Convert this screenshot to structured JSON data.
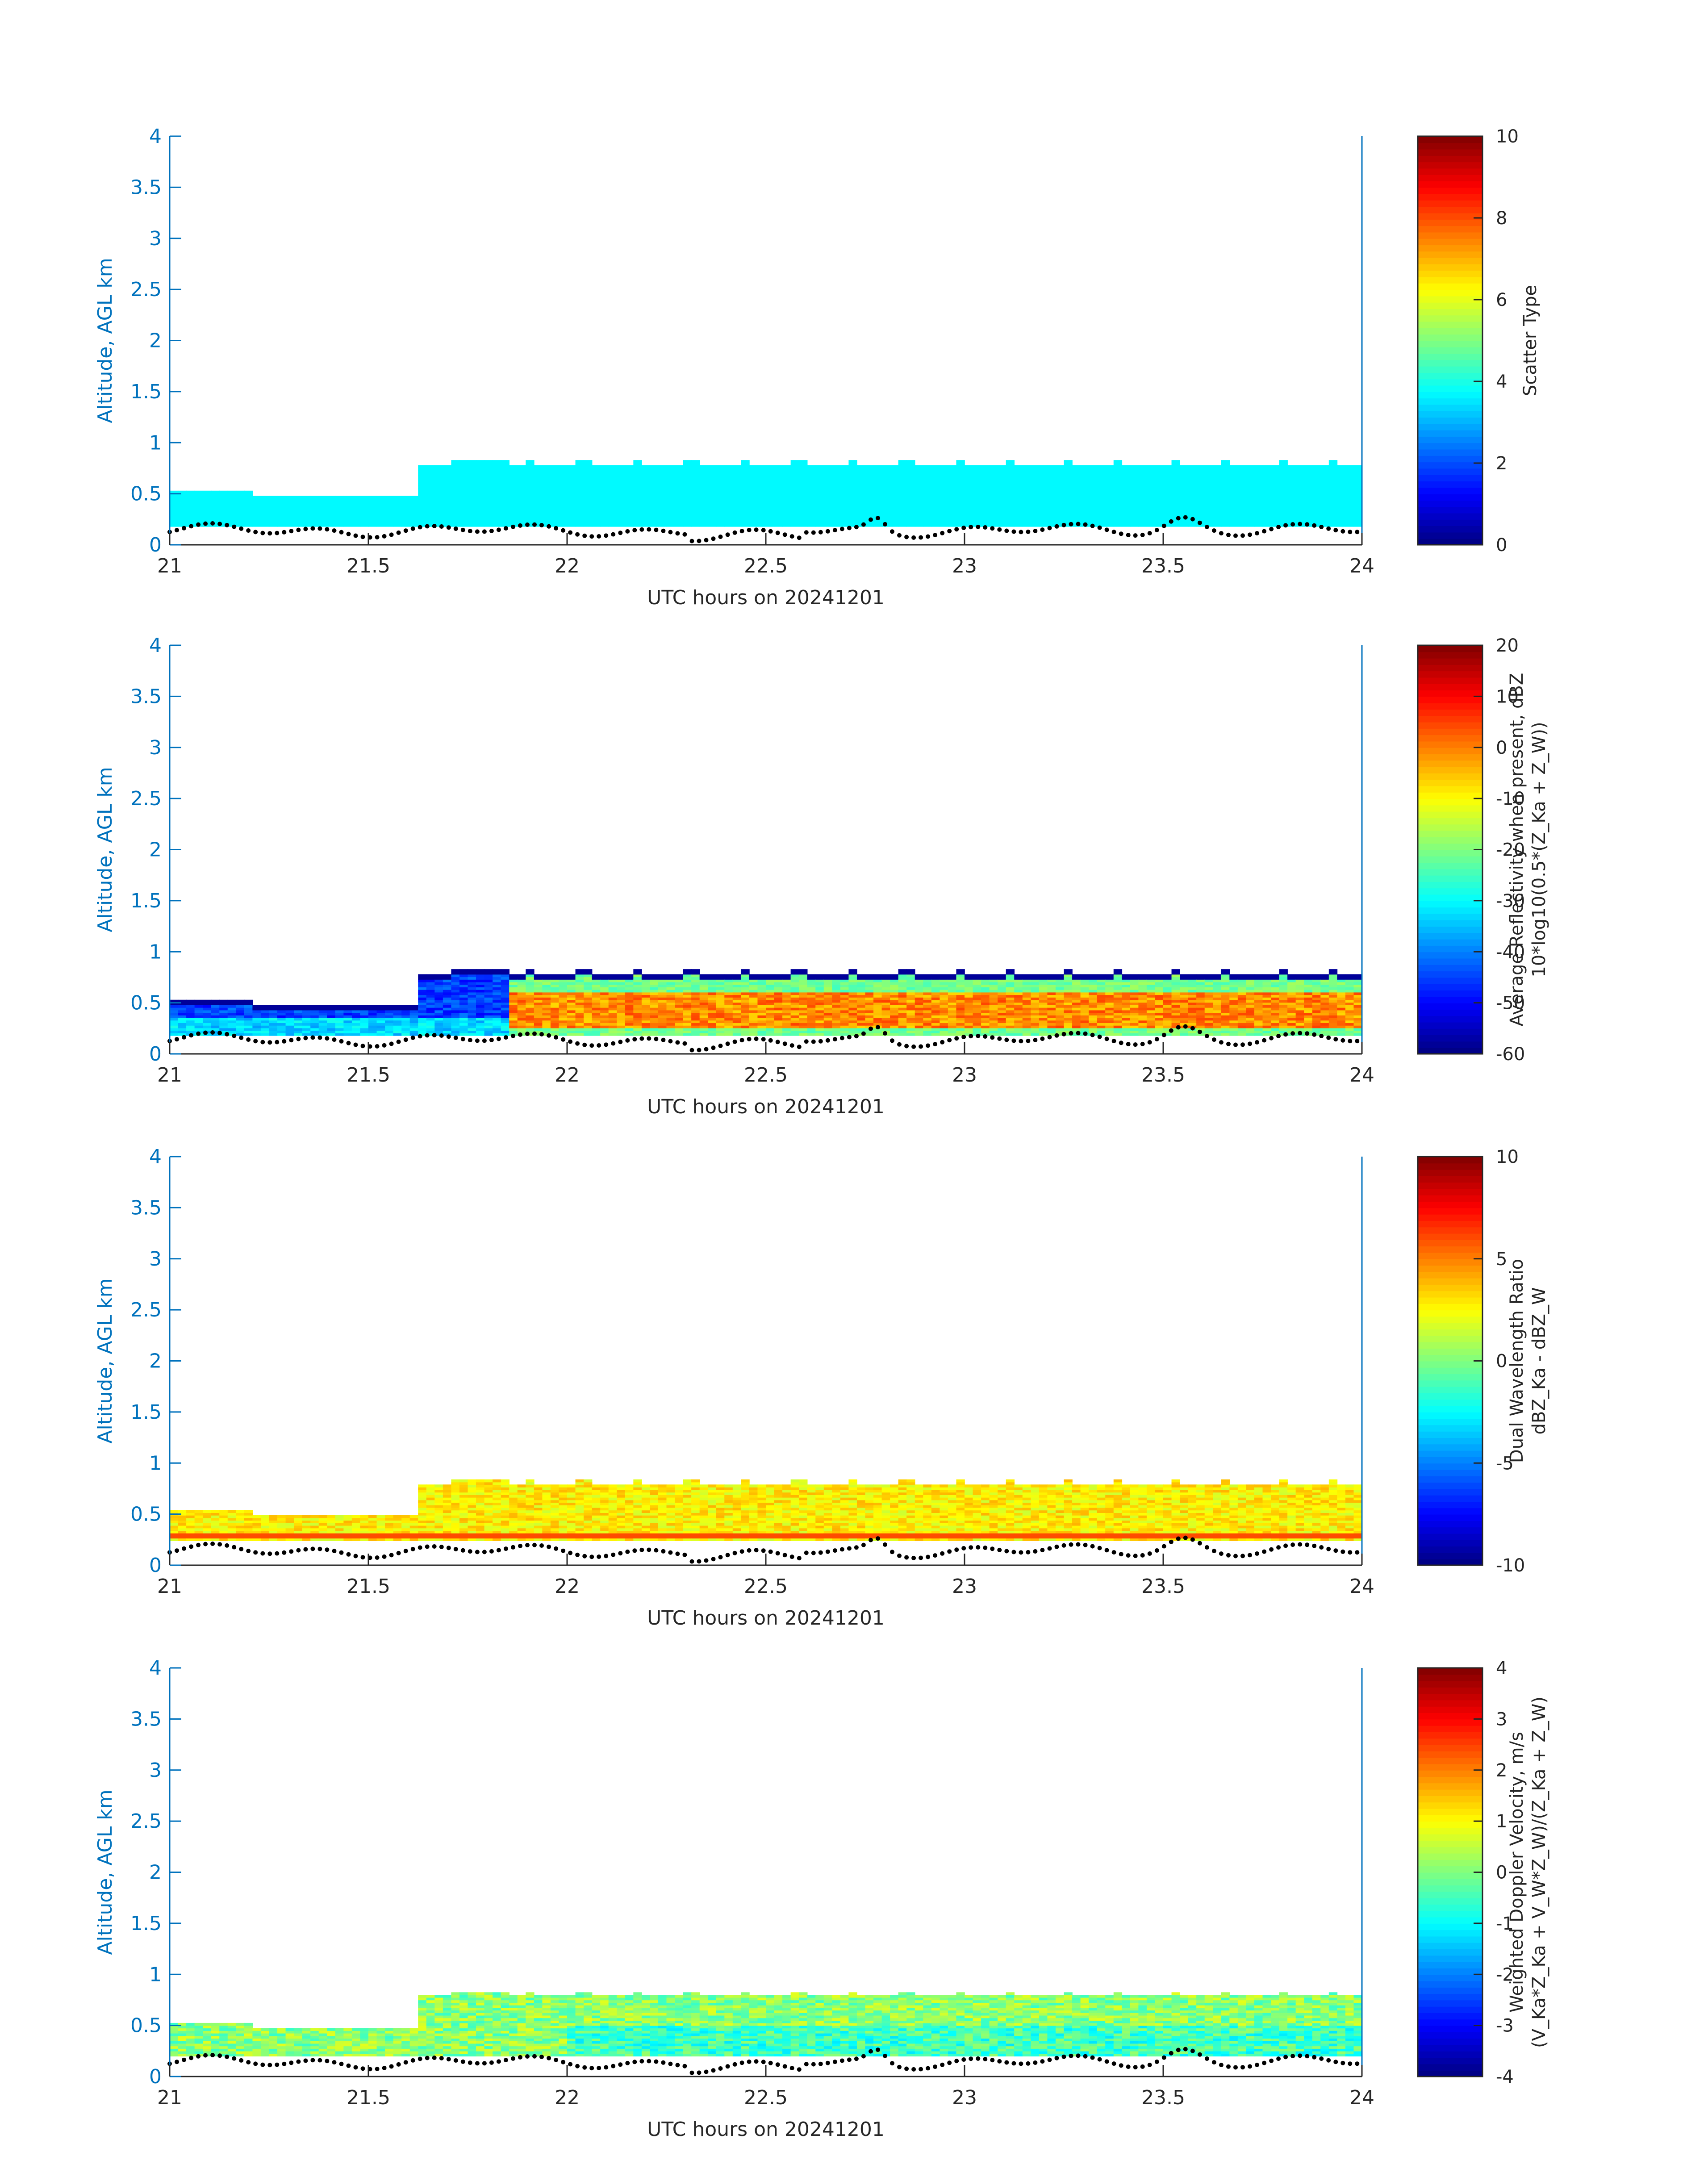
{
  "figure": {
    "xlabel": "UTC hours on 20241201",
    "ylabel": "Altitude, AGL km"
  },
  "chart_data": [
    {
      "type": "heatmap",
      "xlabel": "UTC hours on 20241201",
      "ylabel": "Altitude, AGL km",
      "xlim": [
        21,
        24
      ],
      "ylim": [
        0,
        4
      ],
      "xticks": [
        "21",
        "21.5",
        "22",
        "22.5",
        "23",
        "23.5",
        "24"
      ],
      "yticks": [
        "0",
        "0.5",
        "1",
        "1.5",
        "2",
        "2.5",
        "3",
        "3.5",
        "4"
      ],
      "colorbar": {
        "label_lines": [
          "Scatter Type"
        ],
        "range": [
          0,
          10
        ],
        "ticks": [
          "0",
          "2",
          "4",
          "6",
          "8",
          "10"
        ]
      },
      "colormap": "jet",
      "cloud_base_km": 0.18,
      "cloud_top_km": [
        [
          21.0,
          0.52
        ],
        [
          21.2,
          0.47
        ],
        [
          21.5,
          0.47
        ],
        [
          21.62,
          0.42
        ],
        [
          21.63,
          0.78
        ],
        [
          21.8,
          0.8
        ],
        [
          24.0,
          0.78
        ]
      ],
      "dominant_value": 3.7,
      "ground_dots": "black dotted trace near 0.1-0.35 km"
    },
    {
      "type": "heatmap",
      "xlabel": "UTC hours on 20241201",
      "ylabel": "Altitude, AGL km",
      "xlim": [
        21,
        24
      ],
      "ylim": [
        0,
        4
      ],
      "xticks": [
        "21",
        "21.5",
        "22",
        "22.5",
        "23",
        "23.5",
        "24"
      ],
      "yticks": [
        "0",
        "0.5",
        "1",
        "1.5",
        "2",
        "2.5",
        "3",
        "3.5",
        "4"
      ],
      "colorbar": {
        "label_lines": [
          "Average Reflectivity when present, dBZ",
          "10*log10(0.5*(Z_Ka + Z_W))"
        ],
        "range": [
          -60,
          20
        ],
        "ticks": [
          "-60",
          "-50",
          "-40",
          "-30",
          "-20",
          "-10",
          "0",
          "10",
          "20"
        ]
      },
      "colormap": "jet",
      "value_range_in_cloud": [
        -55,
        5
      ],
      "top_layer_value": -58
    },
    {
      "type": "heatmap",
      "xlabel": "UTC hours on 20241201",
      "ylabel": "Altitude, AGL km",
      "xlim": [
        21,
        24
      ],
      "ylim": [
        0,
        4
      ],
      "xticks": [
        "21",
        "21.5",
        "22",
        "22.5",
        "23",
        "23.5",
        "24"
      ],
      "yticks": [
        "0",
        "0.5",
        "1",
        "1.5",
        "2",
        "2.5",
        "3",
        "3.5",
        "4"
      ],
      "colorbar": {
        "label_lines": [
          "Dual Wavelength Ratio",
          "dBZ_Ka - dBZ_W"
        ],
        "range": [
          -10,
          10
        ],
        "ticks": [
          "-10",
          "-5",
          "0",
          "5",
          "10"
        ]
      },
      "colormap": "jet",
      "value_range_in_cloud": [
        1,
        4
      ],
      "band_altitude_km": 0.28,
      "band_value": 6
    },
    {
      "type": "heatmap",
      "xlabel": "UTC hours on 20241201",
      "ylabel": "Altitude, AGL km",
      "xlim": [
        21,
        24
      ],
      "ylim": [
        0,
        4
      ],
      "xticks": [
        "21",
        "21.5",
        "22",
        "22.5",
        "23",
        "23.5",
        "24"
      ],
      "yticks": [
        "0",
        "0.5",
        "1",
        "1.5",
        "2",
        "2.5",
        "3",
        "3.5",
        "4"
      ],
      "colorbar": {
        "label_lines": [
          "Weighted Doppler Velocity, m/s",
          "(V_Ka*Z_Ka + V_W*Z_W)/(Z_Ka + Z_W)"
        ],
        "range": [
          -4,
          4
        ],
        "ticks": [
          "-4",
          "-3",
          "-2",
          "-1",
          "0",
          "1",
          "2",
          "3",
          "4"
        ]
      },
      "colormap": "jet",
      "value_range_in_cloud": [
        -1.5,
        0.8
      ]
    }
  ]
}
